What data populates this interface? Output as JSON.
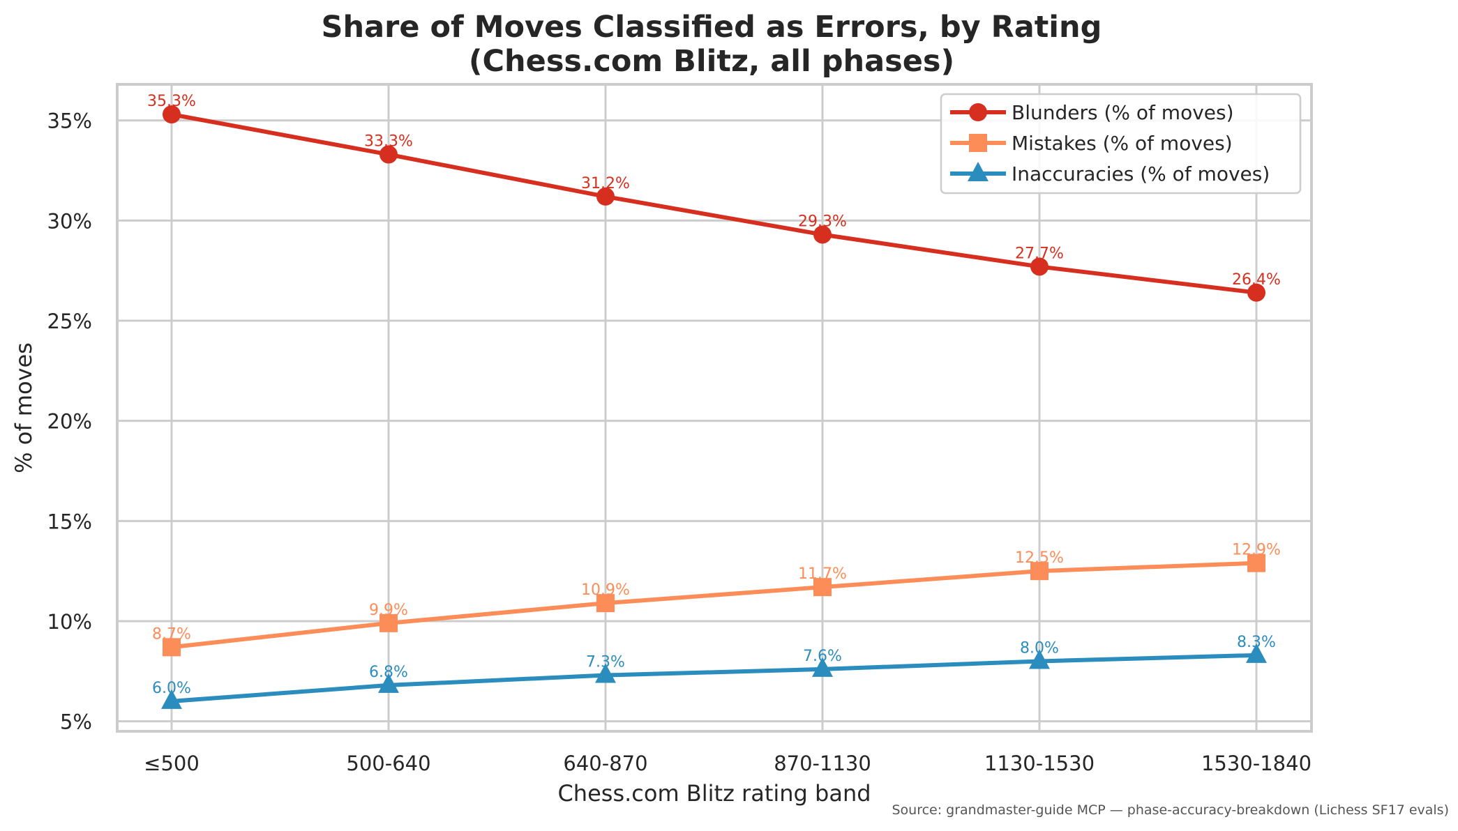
{
  "chart_data": {
    "type": "line",
    "title_line1": "Share of Moves Classified as Errors, by Rating",
    "title_line2": "(Chess.com Blitz, all phases)",
    "xlabel": "Chess.com Blitz rating band",
    "ylabel": "% of moves",
    "categories": [
      "≤500",
      "500-640",
      "640-870",
      "870-1130",
      "1130-1530",
      "1530-1840"
    ],
    "ylim": [
      4.5,
      36.8
    ],
    "yticks": [
      5,
      10,
      15,
      20,
      25,
      30,
      35
    ],
    "ytick_labels": [
      "5%",
      "10%",
      "15%",
      "20%",
      "25%",
      "30%",
      "35%"
    ],
    "grid": true,
    "legend_position": "top-right",
    "series": [
      {
        "name": "Blunders (% of moves)",
        "marker": "circle",
        "color": "#d62f1f",
        "values": [
          35.3,
          33.3,
          31.2,
          29.3,
          27.7,
          26.4
        ],
        "labels": [
          "35.3%",
          "33.3%",
          "31.2%",
          "29.3%",
          "27.7%",
          "26.4%"
        ]
      },
      {
        "name": "Mistakes (% of moves)",
        "marker": "square",
        "color": "#fc8d59",
        "values": [
          8.7,
          9.9,
          10.9,
          11.7,
          12.5,
          12.9
        ],
        "labels": [
          "8.7%",
          "9.9%",
          "10.9%",
          "11.7%",
          "12.5%",
          "12.9%"
        ]
      },
      {
        "name": "Inaccuracies (% of moves)",
        "marker": "triangle",
        "color": "#2b8cbe",
        "values": [
          6.0,
          6.8,
          7.3,
          7.6,
          8.0,
          8.3
        ],
        "labels": [
          "6.0%",
          "6.8%",
          "7.3%",
          "7.6%",
          "8.0%",
          "8.3%"
        ]
      }
    ],
    "source_note": "Source: grandmaster-guide MCP — phase-accuracy-breakdown (Lichess SF17 evals)"
  }
}
